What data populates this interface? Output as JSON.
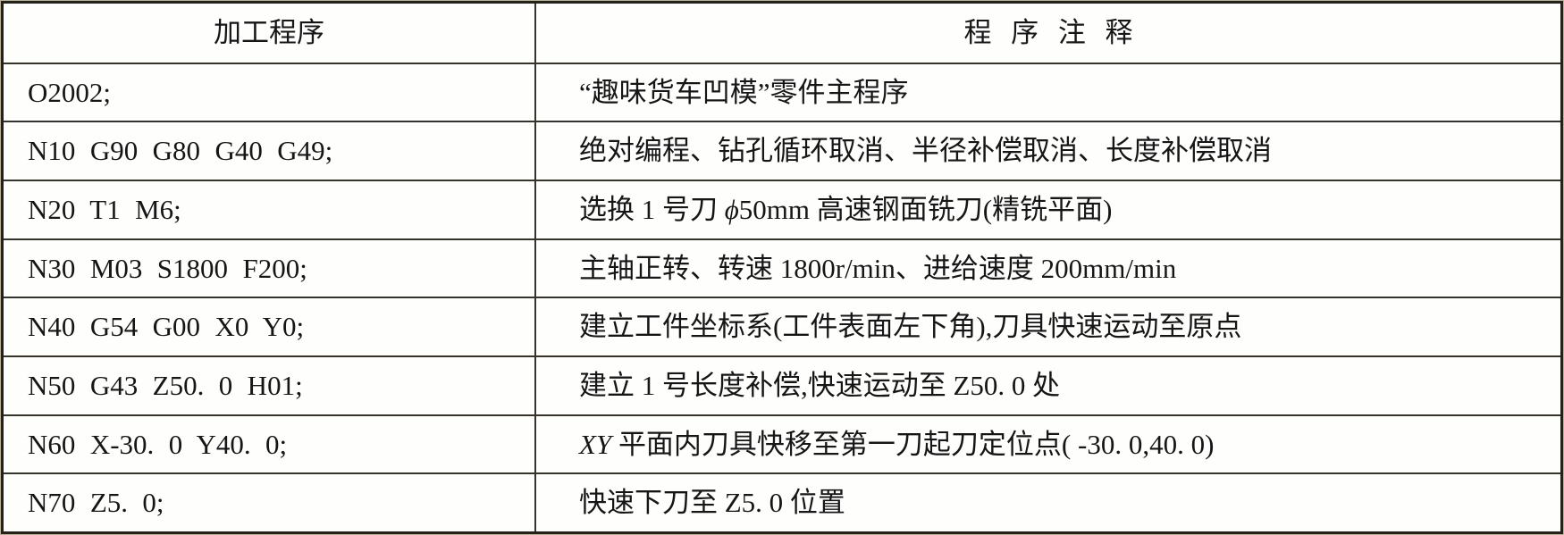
{
  "table": {
    "title": "machining-program-table",
    "headers": [
      {
        "label": "加工程序"
      },
      {
        "label": "程 序 注 释"
      }
    ],
    "rows": [
      {
        "program": "O2002;",
        "comment": [
          {
            "t": "“趣味货车凹模”零件主程序"
          }
        ]
      },
      {
        "program": "N10 G90 G80 G40 G49;",
        "comment": [
          {
            "t": "绝对编程、钻孔循环取消、半径补偿取消、长度补偿取消"
          }
        ]
      },
      {
        "program": "N20 T1 M6;",
        "comment": [
          {
            "t": "选换 1 号刀 "
          },
          {
            "t": "ϕ",
            "i": true
          },
          {
            "t": "50mm 高速钢面铣刀(精铣平面)"
          }
        ]
      },
      {
        "program": "N30 M03 S1800 F200;",
        "comment": [
          {
            "t": "主轴正转、转速 1800r/min、进给速度 200mm/min"
          }
        ]
      },
      {
        "program": "N40 G54 G00 X0 Y0;",
        "comment": [
          {
            "t": "建立工件坐标系(工件表面左下角),刀具快速运动至原点"
          }
        ]
      },
      {
        "program": "N50 G43 Z50. 0 H01;",
        "comment": [
          {
            "t": "建立 1 号长度补偿,快速运动至 Z50. 0 处"
          }
        ]
      },
      {
        "program": "N60 X-30. 0 Y40. 0;",
        "comment": [
          {
            "t": "XY",
            "i": true
          },
          {
            "t": " 平面内刀具快移至第一刀起刀定位点( -30. 0,40. 0)"
          }
        ]
      },
      {
        "program": "N70 Z5. 0;",
        "comment": [
          {
            "t": "快速下刀至 Z5. 0 位置"
          }
        ]
      }
    ],
    "colors": {
      "rule": "#35332b",
      "outer_border": "#23211a",
      "paper": "#fefefd",
      "text": "#161616"
    }
  }
}
